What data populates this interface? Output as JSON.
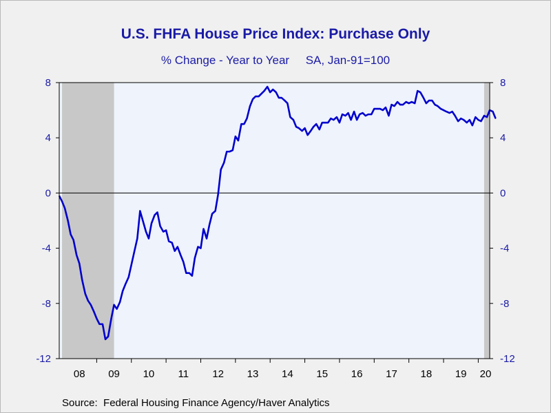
{
  "title": "U.S. FHFA House Price Index: Purchase Only",
  "subtitle": "% Change - Year to Year     SA, Jan-91=100",
  "source": "Source:  Federal Housing Finance Agency/Haver Analytics",
  "colors": {
    "line": "#0000cc",
    "plot_background": "#eef3fc",
    "recession": "#c8c8c8",
    "text": "#1a1aa6"
  },
  "chart_data": {
    "type": "line",
    "x_unit": "year",
    "ylim": [
      -12,
      8
    ],
    "xlim": [
      2007.92,
      2020.33
    ],
    "y_ticks_left": [
      "8",
      "4",
      "0",
      "-4",
      "-8",
      "-12"
    ],
    "y_ticks_right": [
      "8",
      "4",
      "0",
      "-4",
      "-8",
      "-12"
    ],
    "y_tick_values": [
      8,
      4,
      0,
      -4,
      -8,
      -12
    ],
    "x_tick_labels": [
      "08",
      "09",
      "10",
      "11",
      "12",
      "13",
      "14",
      "15",
      "16",
      "17",
      "18",
      "19",
      "20"
    ],
    "x_tick_values": [
      2008.5,
      2009.5,
      2010.5,
      2011.5,
      2012.5,
      2013.5,
      2014.5,
      2015.5,
      2016.5,
      2017.5,
      2018.5,
      2019.5,
      2020.5
    ],
    "zero_line": true,
    "recessions": [
      [
        2008.0,
        2009.5
      ],
      [
        2020.17,
        2020.33
      ]
    ],
    "series": [
      {
        "values": [
          [
            2007.92,
            -0.2
          ],
          [
            2008.0,
            -0.6
          ],
          [
            2008.08,
            -1.1
          ],
          [
            2008.17,
            -2.0
          ],
          [
            2008.25,
            -3.0
          ],
          [
            2008.33,
            -3.4
          ],
          [
            2008.42,
            -4.5
          ],
          [
            2008.5,
            -5.1
          ],
          [
            2008.58,
            -6.3
          ],
          [
            2008.67,
            -7.3
          ],
          [
            2008.75,
            -7.8
          ],
          [
            2008.83,
            -8.1
          ],
          [
            2008.92,
            -8.6
          ],
          [
            2009.0,
            -9.1
          ],
          [
            2009.08,
            -9.5
          ],
          [
            2009.17,
            -9.5
          ],
          [
            2009.25,
            -10.6
          ],
          [
            2009.33,
            -10.4
          ],
          [
            2009.42,
            -9.1
          ],
          [
            2009.5,
            -8.1
          ],
          [
            2009.58,
            -8.4
          ],
          [
            2009.67,
            -7.9
          ],
          [
            2009.75,
            -7.1
          ],
          [
            2009.83,
            -6.6
          ],
          [
            2009.92,
            -6.1
          ],
          [
            2010.0,
            -5.2
          ],
          [
            2010.08,
            -4.3
          ],
          [
            2010.17,
            -3.3
          ],
          [
            2010.25,
            -1.3
          ],
          [
            2010.33,
            -2.0
          ],
          [
            2010.42,
            -2.8
          ],
          [
            2010.5,
            -3.3
          ],
          [
            2010.58,
            -2.2
          ],
          [
            2010.67,
            -1.6
          ],
          [
            2010.75,
            -1.4
          ],
          [
            2010.83,
            -2.4
          ],
          [
            2010.92,
            -2.8
          ],
          [
            2011.0,
            -2.7
          ],
          [
            2011.08,
            -3.5
          ],
          [
            2011.17,
            -3.6
          ],
          [
            2011.25,
            -4.2
          ],
          [
            2011.33,
            -3.9
          ],
          [
            2011.42,
            -4.5
          ],
          [
            2011.5,
            -5.0
          ],
          [
            2011.58,
            -5.8
          ],
          [
            2011.67,
            -5.8
          ],
          [
            2011.75,
            -6.0
          ],
          [
            2011.83,
            -4.7
          ],
          [
            2011.92,
            -3.9
          ],
          [
            2012.0,
            -4.0
          ],
          [
            2012.08,
            -2.6
          ],
          [
            2012.17,
            -3.3
          ],
          [
            2012.25,
            -2.3
          ],
          [
            2012.33,
            -1.5
          ],
          [
            2012.42,
            -1.3
          ],
          [
            2012.5,
            -0.1
          ],
          [
            2012.58,
            1.7
          ],
          [
            2012.67,
            2.2
          ],
          [
            2012.75,
            3.0
          ],
          [
            2012.83,
            3.0
          ],
          [
            2012.92,
            3.1
          ],
          [
            2013.0,
            4.1
          ],
          [
            2013.08,
            3.8
          ],
          [
            2013.17,
            5.0
          ],
          [
            2013.25,
            5.0
          ],
          [
            2013.33,
            5.4
          ],
          [
            2013.42,
            6.3
          ],
          [
            2013.5,
            6.8
          ],
          [
            2013.58,
            7.0
          ],
          [
            2013.67,
            7.0
          ],
          [
            2013.75,
            7.2
          ],
          [
            2013.83,
            7.4
          ],
          [
            2013.92,
            7.7
          ],
          [
            2014.0,
            7.3
          ],
          [
            2014.08,
            7.5
          ],
          [
            2014.17,
            7.3
          ],
          [
            2014.25,
            6.9
          ],
          [
            2014.33,
            6.9
          ],
          [
            2014.42,
            6.7
          ],
          [
            2014.5,
            6.5
          ],
          [
            2014.58,
            5.5
          ],
          [
            2014.67,
            5.3
          ],
          [
            2014.75,
            4.8
          ],
          [
            2014.83,
            4.7
          ],
          [
            2014.92,
            4.5
          ],
          [
            2015.0,
            4.7
          ],
          [
            2015.08,
            4.2
          ],
          [
            2015.17,
            4.5
          ],
          [
            2015.25,
            4.8
          ],
          [
            2015.33,
            5.0
          ],
          [
            2015.42,
            4.6
          ],
          [
            2015.5,
            5.1
          ],
          [
            2015.58,
            5.1
          ],
          [
            2015.67,
            5.1
          ],
          [
            2015.75,
            5.4
          ],
          [
            2015.83,
            5.3
          ],
          [
            2015.92,
            5.5
          ],
          [
            2016.0,
            5.1
          ],
          [
            2016.08,
            5.7
          ],
          [
            2016.17,
            5.6
          ],
          [
            2016.25,
            5.8
          ],
          [
            2016.33,
            5.3
          ],
          [
            2016.42,
            5.9
          ],
          [
            2016.5,
            5.3
          ],
          [
            2016.58,
            5.7
          ],
          [
            2016.67,
            5.8
          ],
          [
            2016.75,
            5.6
          ],
          [
            2016.83,
            5.7
          ],
          [
            2016.92,
            5.7
          ],
          [
            2017.0,
            6.1
          ],
          [
            2017.08,
            6.1
          ],
          [
            2017.17,
            6.1
          ],
          [
            2017.25,
            6.0
          ],
          [
            2017.33,
            6.2
          ],
          [
            2017.42,
            5.6
          ],
          [
            2017.5,
            6.4
          ],
          [
            2017.58,
            6.3
          ],
          [
            2017.67,
            6.6
          ],
          [
            2017.75,
            6.4
          ],
          [
            2017.83,
            6.4
          ],
          [
            2017.92,
            6.6
          ],
          [
            2018.0,
            6.5
          ],
          [
            2018.08,
            6.6
          ],
          [
            2018.17,
            6.5
          ],
          [
            2018.25,
            7.4
          ],
          [
            2018.33,
            7.3
          ],
          [
            2018.42,
            6.9
          ],
          [
            2018.5,
            6.5
          ],
          [
            2018.58,
            6.7
          ],
          [
            2018.67,
            6.7
          ],
          [
            2018.75,
            6.4
          ],
          [
            2018.83,
            6.3
          ],
          [
            2018.92,
            6.1
          ],
          [
            2019.0,
            6.0
          ],
          [
            2019.08,
            5.9
          ],
          [
            2019.17,
            5.8
          ],
          [
            2019.25,
            5.9
          ],
          [
            2019.33,
            5.6
          ],
          [
            2019.42,
            5.2
          ],
          [
            2019.5,
            5.4
          ],
          [
            2019.58,
            5.3
          ],
          [
            2019.67,
            5.1
          ],
          [
            2019.75,
            5.3
          ],
          [
            2019.83,
            4.9
          ],
          [
            2019.92,
            5.5
          ],
          [
            2020.0,
            5.3
          ],
          [
            2020.08,
            5.2
          ],
          [
            2020.17,
            5.6
          ],
          [
            2020.25,
            5.5
          ],
          [
            2020.33,
            6.0
          ],
          [
            2020.42,
            5.9
          ],
          [
            2020.5,
            5.4
          ]
        ]
      }
    ]
  }
}
